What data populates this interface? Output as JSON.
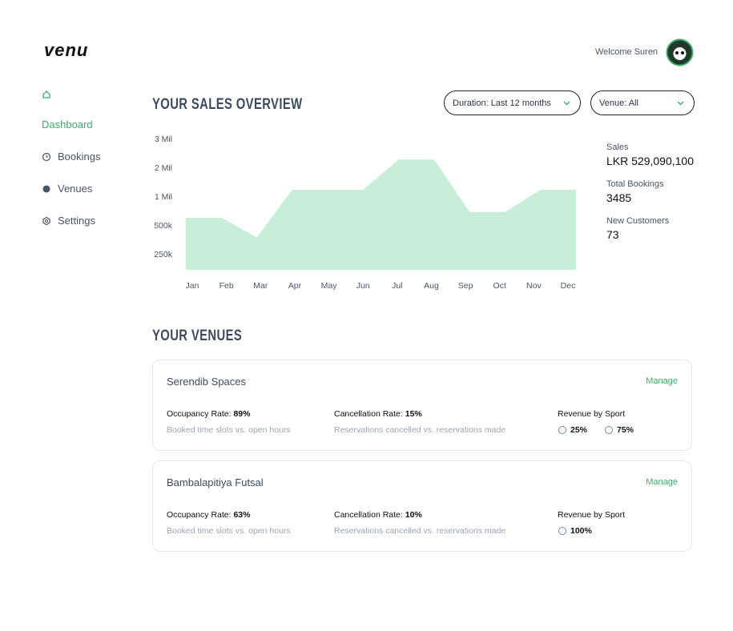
{
  "header": {
    "logo": "venu",
    "welcome": "Welcome Suren"
  },
  "nav": [
    {
      "label": "Dashboard"
    },
    {
      "label": "Bookings"
    },
    {
      "label": "Venues"
    },
    {
      "label": "Settings"
    }
  ],
  "sales": {
    "title": "YOUR SALES OVERVIEW",
    "filters": [
      "Duration: Last 12 months",
      "Venue: All"
    ],
    "stats": [
      {
        "label": "Sales",
        "value": "LKR 529,090,100"
      },
      {
        "label": "Total Bookings",
        "value": "3485"
      },
      {
        "label": "New Customers",
        "value": "73"
      }
    ]
  },
  "chart_data": {
    "type": "area",
    "color": "#c9eed8",
    "categories": [
      "Jan",
      "Feb",
      "Mar",
      "Apr",
      "May",
      "Jun",
      "Jul",
      "Aug",
      "Sep",
      "Oct",
      "Nov",
      "Dec"
    ],
    "values": [
      640000,
      640000,
      400000,
      1250000,
      1250000,
      1250000,
      2300000,
      2300000,
      740000,
      740000,
      1250000,
      1250000
    ],
    "ylim": [
      0,
      3000000
    ],
    "yticks": [
      {
        "value": 250000,
        "label": "250k"
      },
      {
        "value": 500000,
        "label": "500k"
      },
      {
        "value": 1000000,
        "label": "1 Mil"
      },
      {
        "value": 2000000,
        "label": "2 Mil"
      },
      {
        "value": 3000000,
        "label": "3 Mil"
      }
    ]
  },
  "venues": {
    "title": "YOUR VENUES",
    "items": [
      {
        "name": "Serendib Spaces",
        "action": "Manage",
        "occupancy_label": "Occupancy Rate:",
        "occupancy": "89%",
        "occupancy_note": "Booked time slots vs. open hours",
        "cancellation_label": "Cancellation Rate:",
        "cancellation": "15%",
        "cancellation_note": "Reservations cancelled vs. reservations made",
        "revenue_label": "Revenue by Sport",
        "sports": [
          "25%",
          "75%"
        ]
      },
      {
        "name": "Bambalapitiya Futsal",
        "action": "Manage",
        "occupancy_label": "Occupancy Rate:",
        "occupancy": "63%",
        "occupancy_note": "Booked time slots vs. open hours",
        "cancellation_label": "Cancellation Rate:",
        "cancellation": "10%",
        "cancellation_note": "Reservations cancelled vs. reservations made",
        "revenue_label": "Revenue by Sport",
        "sports": [
          "100%"
        ]
      }
    ]
  }
}
